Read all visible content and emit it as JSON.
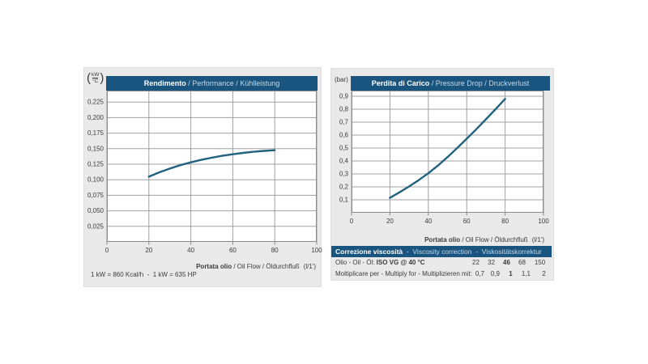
{
  "colors": {
    "page_bg": "#ffffff",
    "panel_bg": "#e9e9e9",
    "header_bg": "#19557f",
    "header_text": "#ffffff",
    "header_text_secondary": "#c7d9e7",
    "curve": "#216280",
    "grid": "#a0a0a0",
    "plot_border": "#8a8a8a",
    "plot_bg": "#ffffff",
    "text": "#3b3b3b"
  },
  "performance_chart": {
    "unit_numerator": "kW",
    "unit_denominator": "°C",
    "title_main": "Rendimento",
    "title_secondary": " / Performance / Kühlleistung",
    "x_axis_label_main": "Portata olio",
    "x_axis_label_secondary": " / Oil Flow / Öldurchfluß",
    "x_axis_unit": "(l/1')",
    "footnote": "1 kW = 860 Kcal/h  -  1 kW = 635 HP"
  },
  "pressure_chart": {
    "unit": "(bar)",
    "title_main": "Perdita di Carico",
    "title_secondary": " / Pressure Drop / Druckverlust",
    "x_axis_label_main": "Portata olio",
    "x_axis_label_secondary": " / Oil Flow / Öldurchfluß",
    "x_axis_unit": "(l/1')"
  },
  "viscosity_table": {
    "header_main": "Correzione viscosità",
    "header_secondary": "  -  Viscosity correction  -  Viskositätskorrektur",
    "row1_label": "Olio - Oil - Öl: ",
    "row1_label_bold": "ISO VG @ 40 °C",
    "row1_values": [
      "22",
      "32",
      "46",
      "68",
      "150"
    ],
    "row2_label": "Moltiplicare per - Multiply for - Multiplizieren mit:",
    "row2_values": [
      "0,7",
      "0,9",
      "1",
      "1,1",
      "2"
    ],
    "bold_value_index": 2
  },
  "chart_data": [
    {
      "type": "line",
      "title": "Rendimento / Performance / Kühlleistung",
      "xlabel": "Portata olio / Oil Flow / Öldurchfluß (l/1')",
      "ylabel": "kW/°C",
      "annotation": "1 kW = 860 Kcal/h - 1 kW = 635 HP",
      "xlim": [
        0,
        100
      ],
      "ylim": [
        0,
        0.2435
      ],
      "x_ticks": [
        0,
        20,
        40,
        60,
        80,
        100
      ],
      "y_ticks": [
        0.025,
        0.05,
        0.075,
        0.1,
        0.125,
        0.15,
        0.175,
        0.2,
        0.225
      ],
      "y_tick_labels": [
        "0,025",
        "0,050",
        "0,075",
        "0,100",
        "0,125",
        "0,150",
        "0,175",
        "0,200",
        "0,225"
      ],
      "grid": true,
      "legend": false,
      "series": [
        {
          "name": "cooling-performance",
          "x": [
            20,
            25,
            30,
            35,
            40,
            45,
            50,
            55,
            60,
            65,
            70,
            75,
            80
          ],
          "y": [
            0.105,
            0.112,
            0.118,
            0.1235,
            0.128,
            0.132,
            0.1355,
            0.1385,
            0.141,
            0.1432,
            0.145,
            0.1465,
            0.1475
          ]
        }
      ]
    },
    {
      "type": "line",
      "title": "Perdita di Carico / Pressure Drop / Druckverlust",
      "xlabel": "Portata olio / Oil Flow / Öldurchfluß (l/1')",
      "ylabel": "bar",
      "xlim": [
        0,
        100
      ],
      "ylim": [
        0,
        0.944
      ],
      "x_ticks": [
        0,
        20,
        40,
        60,
        80,
        100
      ],
      "y_ticks": [
        0.1,
        0.2,
        0.3,
        0.4,
        0.5,
        0.6,
        0.7,
        0.8,
        0.9
      ],
      "y_tick_labels": [
        "0,1",
        "0,2",
        "0,3",
        "0,4",
        "0,5",
        "0,6",
        "0,7",
        "0,8",
        "0,9"
      ],
      "grid": true,
      "legend": false,
      "series": [
        {
          "name": "pressure-drop",
          "x": [
            20,
            25,
            30,
            35,
            40,
            45,
            50,
            55,
            60,
            65,
            70,
            75,
            80
          ],
          "y": [
            0.115,
            0.158,
            0.203,
            0.252,
            0.305,
            0.365,
            0.43,
            0.5,
            0.572,
            0.646,
            0.722,
            0.8,
            0.88
          ]
        }
      ]
    }
  ]
}
